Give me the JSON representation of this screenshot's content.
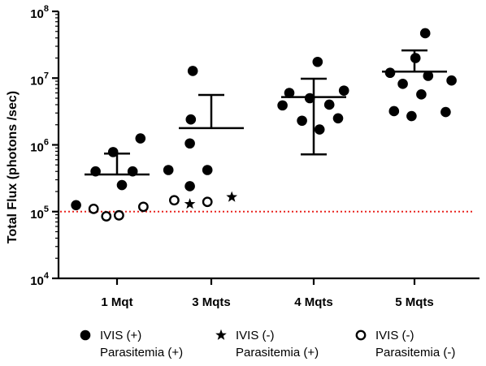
{
  "chart_data": {
    "type": "scatter",
    "y_scale": "log",
    "ylim": [
      10000,
      100000000
    ],
    "ylabel": "Total Flux (photons /sec)",
    "y_ticks": [
      {
        "value": 10000,
        "base": "10",
        "exp": "4"
      },
      {
        "value": 100000,
        "base": "10",
        "exp": "5"
      },
      {
        "value": 1000000,
        "base": "10",
        "exp": "6"
      },
      {
        "value": 10000000,
        "base": "10",
        "exp": "7"
      },
      {
        "value": 100000000,
        "base": "10",
        "exp": "8"
      }
    ],
    "categories": [
      "1 Mqt",
      "3 Mqts",
      "4 Mqts",
      "5 Mqts"
    ],
    "reference_line": {
      "y": 100000,
      "color": "#e8231e",
      "style": "dotted"
    },
    "series": [
      {
        "name": "IVIS (+) Parasitemia (+)",
        "legend_lines": [
          "IVIS (+)",
          "Parasitemia (+)"
        ],
        "marker": "filled-circle",
        "points": [
          {
            "cat": 0,
            "dx": 0.24,
            "y": 1250000
          },
          {
            "cat": 0,
            "dx": -0.04,
            "y": 780000
          },
          {
            "cat": 0,
            "dx": -0.22,
            "y": 400000
          },
          {
            "cat": 0,
            "dx": 0.16,
            "y": 400000
          },
          {
            "cat": 0,
            "dx": 0.05,
            "y": 250000
          },
          {
            "cat": 0,
            "dx": -0.42,
            "y": 125000
          },
          {
            "cat": 1,
            "dx": -0.19,
            "y": 12800000
          },
          {
            "cat": 1,
            "dx": -0.21,
            "y": 2400000
          },
          {
            "cat": 1,
            "dx": -0.22,
            "y": 1050000
          },
          {
            "cat": 1,
            "dx": -0.44,
            "y": 420000
          },
          {
            "cat": 1,
            "dx": -0.04,
            "y": 420000
          },
          {
            "cat": 1,
            "dx": -0.22,
            "y": 240000
          },
          {
            "cat": 2,
            "dx": 0.04,
            "y": 17500000
          },
          {
            "cat": 2,
            "dx": -0.25,
            "y": 6000000
          },
          {
            "cat": 2,
            "dx": 0.31,
            "y": 6500000
          },
          {
            "cat": 2,
            "dx": -0.04,
            "y": 5000000
          },
          {
            "cat": 2,
            "dx": 0.16,
            "y": 4000000
          },
          {
            "cat": 2,
            "dx": -0.32,
            "y": 3900000
          },
          {
            "cat": 2,
            "dx": 0.25,
            "y": 2500000
          },
          {
            "cat": 2,
            "dx": -0.12,
            "y": 2300000
          },
          {
            "cat": 2,
            "dx": 0.06,
            "y": 1700000
          },
          {
            "cat": 3,
            "dx": 0.11,
            "y": 47000000
          },
          {
            "cat": 3,
            "dx": 0.01,
            "y": 20000000
          },
          {
            "cat": 3,
            "dx": -0.25,
            "y": 12000000
          },
          {
            "cat": 3,
            "dx": 0.14,
            "y": 10800000
          },
          {
            "cat": 3,
            "dx": 0.38,
            "y": 9200000
          },
          {
            "cat": 3,
            "dx": -0.12,
            "y": 8200000
          },
          {
            "cat": 3,
            "dx": 0.07,
            "y": 5700000
          },
          {
            "cat": 3,
            "dx": -0.21,
            "y": 3200000
          },
          {
            "cat": 3,
            "dx": 0.32,
            "y": 3100000
          },
          {
            "cat": 3,
            "dx": -0.03,
            "y": 2700000
          }
        ]
      },
      {
        "name": "IVIS (-) Parasitemia (+)",
        "legend_lines": [
          "IVIS (-)",
          "Parasitemia (+)"
        ],
        "marker": "star",
        "points": [
          {
            "cat": 1,
            "dx": -0.22,
            "y": 130000
          },
          {
            "cat": 1,
            "dx": 0.21,
            "y": 165000
          }
        ]
      },
      {
        "name": "IVIS (-) Parasitemia (-)",
        "legend_lines": [
          "IVIS (-)",
          "Parasitemia (-)"
        ],
        "marker": "open-circle",
        "points": [
          {
            "cat": 0,
            "dx": -0.24,
            "y": 110000
          },
          {
            "cat": 0,
            "dx": -0.11,
            "y": 85000
          },
          {
            "cat": 0,
            "dx": 0.02,
            "y": 88000
          },
          {
            "cat": 0,
            "dx": 0.27,
            "y": 118000
          },
          {
            "cat": 1,
            "dx": -0.38,
            "y": 148000
          },
          {
            "cat": 1,
            "dx": -0.04,
            "y": 140000
          }
        ]
      }
    ],
    "summary": [
      {
        "cat": 0,
        "mean": 360000,
        "upper": 740000,
        "lower": null
      },
      {
        "cat": 1,
        "mean": 1780000,
        "upper": 5600000,
        "lower": null
      },
      {
        "cat": 2,
        "mean": 5200000,
        "upper": 9800000,
        "lower": 720000
      },
      {
        "cat": 3,
        "mean": 12500000,
        "upper": 26000000,
        "lower": null
      }
    ],
    "legend_position": "bottom",
    "grid": false
  }
}
